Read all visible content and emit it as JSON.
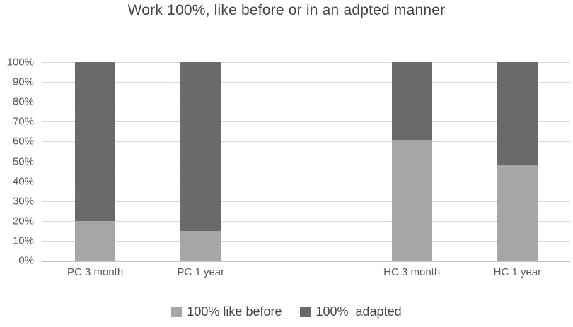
{
  "title": "Work 100%, like before or in an adpted manner",
  "chart_data": {
    "type": "bar",
    "stacked": true,
    "title": "Work 100%, like before or in an adpted manner",
    "categories": [
      "PC 3 month",
      "PC 1 year",
      "HC 3 month",
      "HC 1 year"
    ],
    "series": [
      {
        "name": "100% like before",
        "color": "#a6a6a6",
        "values": [
          20,
          15,
          61,
          48
        ]
      },
      {
        "name": "100%  adapted",
        "color": "#6a6a6a",
        "values": [
          80,
          85,
          39,
          52
        ]
      }
    ],
    "xlabel": "",
    "ylabel": "",
    "ylim": [
      0,
      100
    ],
    "ytick_step": 10,
    "ytick_labels": [
      "0%",
      "10%",
      "20%",
      "30%",
      "40%",
      "50%",
      "60%",
      "70%",
      "80%",
      "90%",
      "100%"
    ],
    "grid": true,
    "grid_color": "#d9d9d9",
    "axis_line_color": "#c3c3c3",
    "legend_position": "bottom",
    "slots": 5,
    "slot_index": [
      0,
      1,
      3,
      4
    ],
    "bar_width_fraction": 0.38
  }
}
